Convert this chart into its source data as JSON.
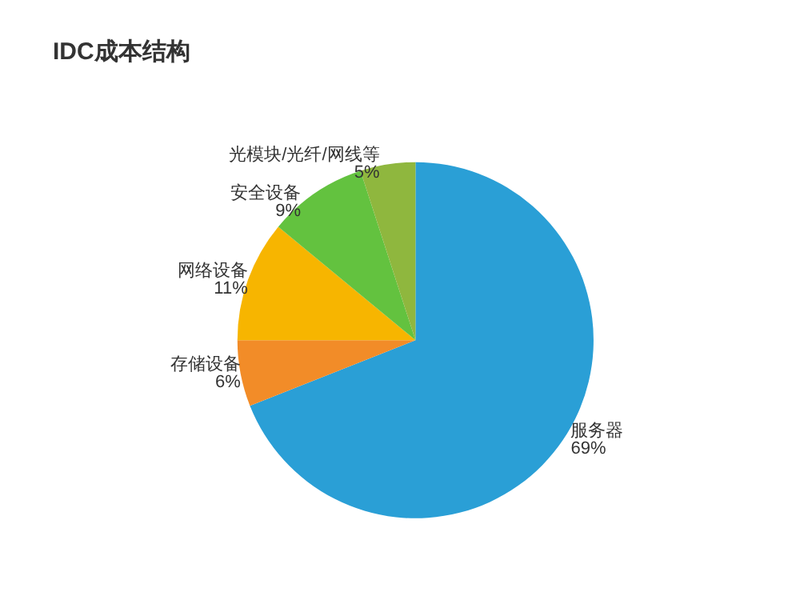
{
  "chart_data": {
    "type": "pie",
    "title": "IDC成本结构",
    "categories": [
      "服务器",
      "存储设备",
      "网络设备",
      "安全设备",
      "光模块/光纤/网线等"
    ],
    "values": [
      69,
      6,
      11,
      9,
      5
    ],
    "colors": [
      "#2a9fd6",
      "#f28c28",
      "#f7b500",
      "#63c23f",
      "#8fb73e"
    ],
    "value_labels": [
      "69%",
      "6%",
      "11%",
      "9%",
      "5%"
    ],
    "legend": false
  }
}
